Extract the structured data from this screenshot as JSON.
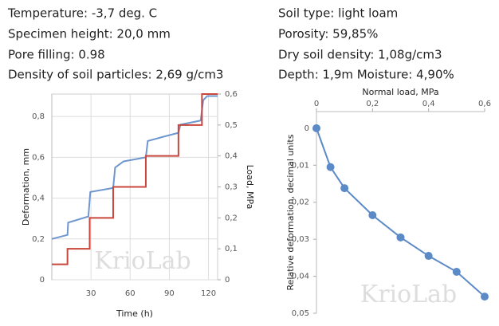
{
  "info_left": [
    "Temperature: -3,7 deg. C",
    "Specimen height: 20,0 mm",
    "Pore filling: 0.98",
    "Density of soil particles: 2,69 g/cm3"
  ],
  "info_right": [
    "Soil type: light loam",
    "Porosity: 59,85%",
    "Dry soil density: 1,08g/cm3",
    "Depth: 1,9m Moisture: 4,90%"
  ],
  "chart_data": [
    {
      "type": "line",
      "xlabel": "Time (h)",
      "ylabel": "Deformation, mm",
      "y2label": "Load, MPa",
      "watermark": "KrioLab",
      "grid": true,
      "xlim": [
        0,
        127
      ],
      "xticks": [
        30,
        60,
        90,
        120
      ],
      "ylim": [
        0,
        0.91
      ],
      "yticks": [
        0,
        {
          "value": 0.2,
          "label": "0,2"
        },
        {
          "value": 0.4,
          "label": "0,4"
        },
        {
          "value": 0.6,
          "label": "0,6"
        },
        {
          "value": 0.8,
          "label": "0,8"
        }
      ],
      "y2lim": [
        0,
        0.6
      ],
      "y2ticks": [
        0,
        {
          "value": 0.1,
          "label": "0,1"
        },
        {
          "value": 0.2,
          "label": "0,2"
        },
        {
          "value": 0.3,
          "label": "0,3"
        },
        {
          "value": 0.4,
          "label": "0,4"
        },
        {
          "value": 0.5,
          "label": "0,5"
        },
        {
          "value": 0.6,
          "label": "0,6"
        }
      ],
      "series": [
        {
          "color": "#6f97cf",
          "x": [
            0,
            12,
            12.5,
            28,
            29.5,
            47,
            48.5,
            55,
            72,
            73.5,
            85,
            97,
            98.5,
            114,
            116,
            119,
            127
          ],
          "values": [
            0.2,
            0.22,
            0.28,
            0.31,
            0.43,
            0.45,
            0.55,
            0.58,
            0.6,
            0.68,
            0.7,
            0.72,
            0.76,
            0.78,
            0.88,
            0.9,
            0.9
          ]
        },
        {
          "color": "#c9463d",
          "axis": "y2",
          "x": [
            0,
            12,
            12,
            29,
            29,
            47,
            47,
            72,
            72,
            97,
            97,
            115,
            115,
            127
          ],
          "values": [
            0.05,
            0.05,
            0.1,
            0.1,
            0.2,
            0.2,
            0.3,
            0.3,
            0.4,
            0.4,
            0.5,
            0.5,
            0.6,
            0.6
          ]
        }
      ]
    },
    {
      "type": "line",
      "xlabel": "Normal load, MPa",
      "ylabel": "Relative deformation, decimal units",
      "watermark": "KrioLab",
      "grid": false,
      "inverted_y": true,
      "x_axis_top": true,
      "markers": true,
      "xlim": [
        0,
        0.6
      ],
      "xticks": [
        0,
        {
          "value": 0.2,
          "label": "0,2"
        },
        {
          "value": 0.4,
          "label": "0,4"
        },
        {
          "value": 0.6,
          "label": "0,6"
        }
      ],
      "ylim": [
        -0.0045,
        0.05
      ],
      "yticks": [
        0,
        {
          "value": 0.01,
          "label": "0,01"
        },
        {
          "value": 0.02,
          "label": "0,02"
        },
        {
          "value": 0.03,
          "label": "0,03"
        },
        {
          "value": 0.04,
          "label": "0,04"
        },
        {
          "value": 0.05,
          "label": "0,05"
        }
      ],
      "series": [
        {
          "color": "#5b8ac7",
          "x": [
            0,
            0.05,
            0.1,
            0.2,
            0.3,
            0.4,
            0.5,
            0.6
          ],
          "values": [
            0,
            0.0105,
            0.0162,
            0.0235,
            0.0295,
            0.0345,
            0.0388,
            0.0455
          ]
        }
      ]
    }
  ]
}
